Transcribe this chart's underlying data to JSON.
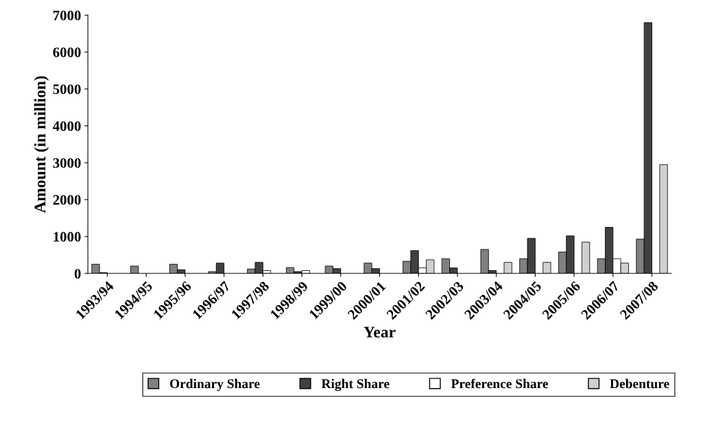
{
  "chart_data": {
    "type": "bar",
    "xlabel": "Year",
    "ylabel": "Amount (in million)",
    "categories": [
      "1993/94",
      "1994/95",
      "1995/96",
      "1996/97",
      "1997/98",
      "1998/99",
      "1999/00",
      "2000/01",
      "2001/02",
      "2002/03",
      "2003/04",
      "2004/05",
      "2005/06",
      "2006/07",
      "2007/08"
    ],
    "series": [
      {
        "name": "Ordinary Share",
        "color": "#808080",
        "values": [
          250,
          200,
          250,
          50,
          120,
          160,
          200,
          280,
          330,
          400,
          650,
          400,
          580,
          400,
          930
        ]
      },
      {
        "name": "Right Share",
        "color": "#404040",
        "values": [
          20,
          null,
          100,
          280,
          300,
          50,
          130,
          130,
          620,
          150,
          80,
          950,
          1020,
          1250,
          6800
        ]
      },
      {
        "name": "Preference Share",
        "color": "#ffffff",
        "values": [
          null,
          null,
          null,
          null,
          80,
          80,
          null,
          null,
          150,
          null,
          null,
          null,
          null,
          400,
          null
        ]
      },
      {
        "name": "Debenture",
        "color": "#d0d0d0",
        "values": [
          null,
          null,
          null,
          null,
          null,
          null,
          null,
          null,
          370,
          null,
          300,
          300,
          850,
          280,
          2950
        ]
      }
    ],
    "ylim": [
      0,
      7000
    ],
    "yticks": [
      0,
      1000,
      2000,
      3000,
      4000,
      5000,
      6000,
      7000
    ],
    "grid": false,
    "legend": "bottom"
  }
}
